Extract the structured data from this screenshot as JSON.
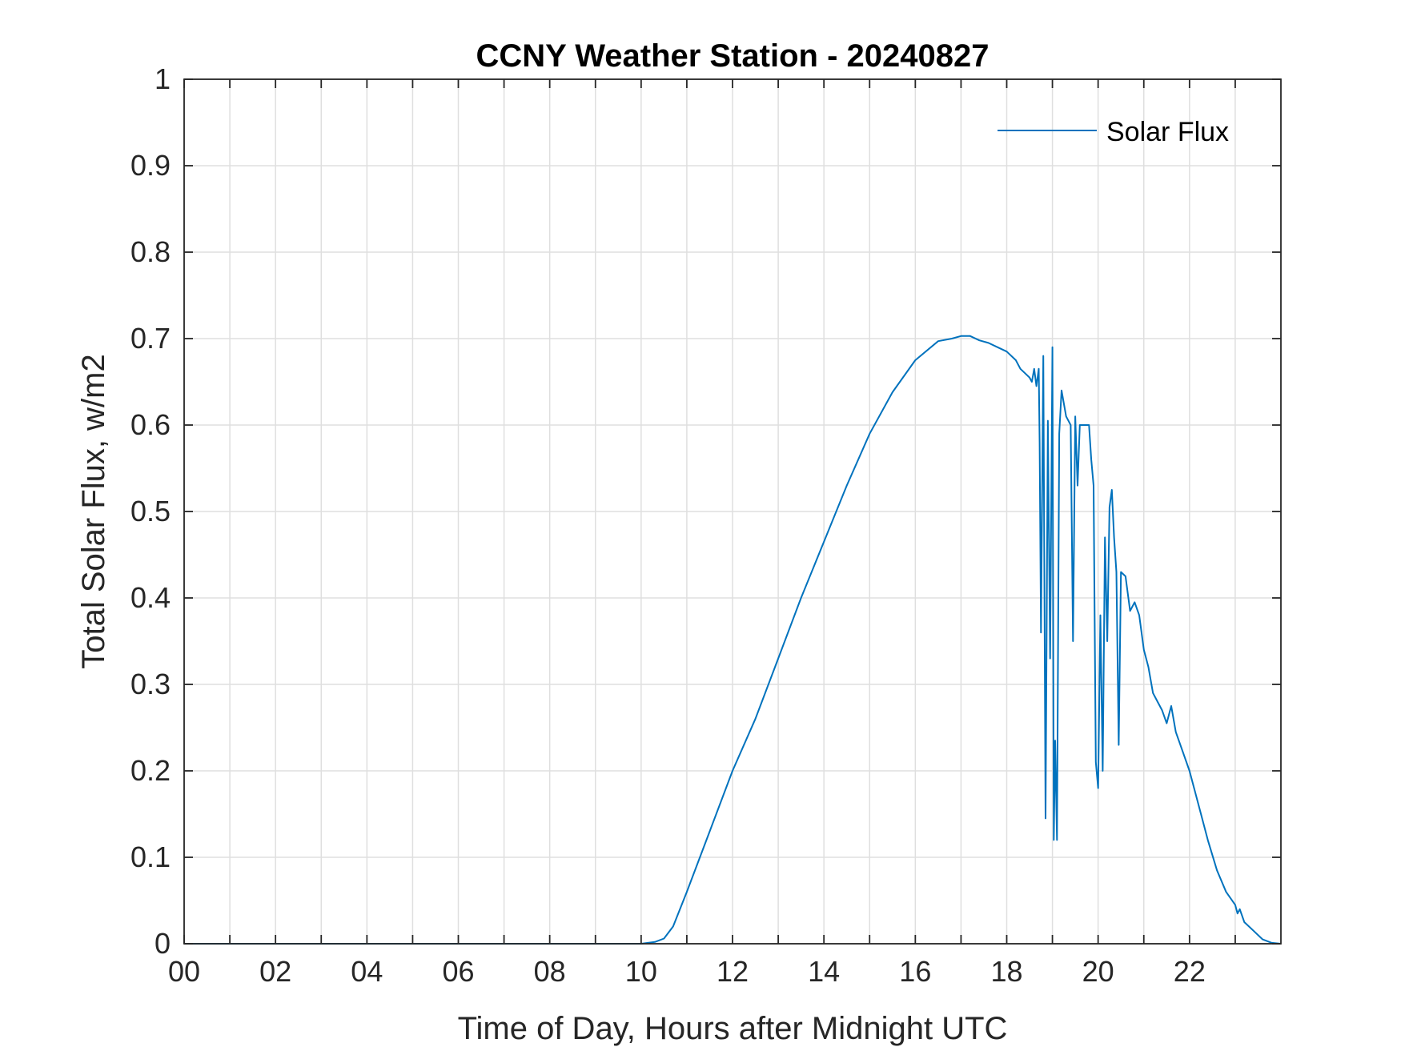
{
  "chart_data": {
    "type": "line",
    "title": "CCNY Weather Station - 20240827",
    "xlabel": "Time of Day, Hours after Midnight UTC",
    "ylabel": "Total Solar Flux, w/m2",
    "xlim": [
      0,
      24
    ],
    "ylim": [
      0,
      1
    ],
    "grid": true,
    "x_ticks": [
      0,
      2,
      4,
      6,
      8,
      10,
      12,
      14,
      16,
      18,
      20,
      22
    ],
    "x_tick_labels": [
      "00",
      "02",
      "04",
      "06",
      "08",
      "10",
      "12",
      "14",
      "16",
      "18",
      "20",
      "22"
    ],
    "x_minor_ticks": [
      1,
      3,
      5,
      7,
      9,
      11,
      13,
      15,
      17,
      19,
      21,
      23
    ],
    "y_ticks": [
      0,
      0.1,
      0.2,
      0.3,
      0.4,
      0.5,
      0.6,
      0.7,
      0.8,
      0.9,
      1
    ],
    "y_tick_labels": [
      "0",
      "0.1",
      "0.2",
      "0.3",
      "0.4",
      "0.5",
      "0.6",
      "0.7",
      "0.8",
      "0.9",
      "1"
    ],
    "legend": {
      "position": "top-right",
      "entries": [
        "Solar Flux"
      ]
    },
    "series": [
      {
        "name": "Solar Flux",
        "color": "#0072bd",
        "x": [
          0,
          10.0,
          10.3,
          10.5,
          10.7,
          11.0,
          11.5,
          12.0,
          12.5,
          13.0,
          13.5,
          14.0,
          14.5,
          15.0,
          15.5,
          16.0,
          16.5,
          16.8,
          17.0,
          17.2,
          17.4,
          17.6,
          17.8,
          18.0,
          18.2,
          18.3,
          18.4,
          18.5,
          18.55,
          18.6,
          18.65,
          18.7,
          18.72,
          18.75,
          18.8,
          18.85,
          18.9,
          18.95,
          19.0,
          19.03,
          19.06,
          19.1,
          19.15,
          19.2,
          19.3,
          19.4,
          19.45,
          19.5,
          19.55,
          19.6,
          19.7,
          19.8,
          19.85,
          19.9,
          19.95,
          20.0,
          20.05,
          20.1,
          20.15,
          20.2,
          20.25,
          20.3,
          20.35,
          20.4,
          20.45,
          20.5,
          20.6,
          20.7,
          20.8,
          20.9,
          21.0,
          21.1,
          21.2,
          21.3,
          21.4,
          21.5,
          21.6,
          21.7,
          21.8,
          22.0,
          22.2,
          22.4,
          22.6,
          22.8,
          23.0,
          23.05,
          23.1,
          23.2,
          23.4,
          23.6,
          23.8,
          24.0
        ],
        "values": [
          0,
          0,
          0.002,
          0.006,
          0.02,
          0.06,
          0.13,
          0.2,
          0.26,
          0.33,
          0.4,
          0.465,
          0.53,
          0.59,
          0.638,
          0.675,
          0.697,
          0.7,
          0.703,
          0.703,
          0.698,
          0.695,
          0.69,
          0.685,
          0.675,
          0.665,
          0.66,
          0.655,
          0.65,
          0.665,
          0.645,
          0.665,
          0.58,
          0.36,
          0.68,
          0.145,
          0.605,
          0.33,
          0.69,
          0.12,
          0.235,
          0.12,
          0.59,
          0.64,
          0.61,
          0.6,
          0.35,
          0.61,
          0.53,
          0.6,
          0.6,
          0.6,
          0.56,
          0.53,
          0.21,
          0.18,
          0.38,
          0.2,
          0.47,
          0.35,
          0.505,
          0.525,
          0.47,
          0.43,
          0.23,
          0.43,
          0.425,
          0.385,
          0.395,
          0.38,
          0.34,
          0.32,
          0.29,
          0.28,
          0.27,
          0.255,
          0.275,
          0.245,
          0.23,
          0.2,
          0.16,
          0.12,
          0.085,
          0.06,
          0.045,
          0.035,
          0.04,
          0.025,
          0.015,
          0.005,
          0.001,
          0
        ]
      }
    ]
  }
}
